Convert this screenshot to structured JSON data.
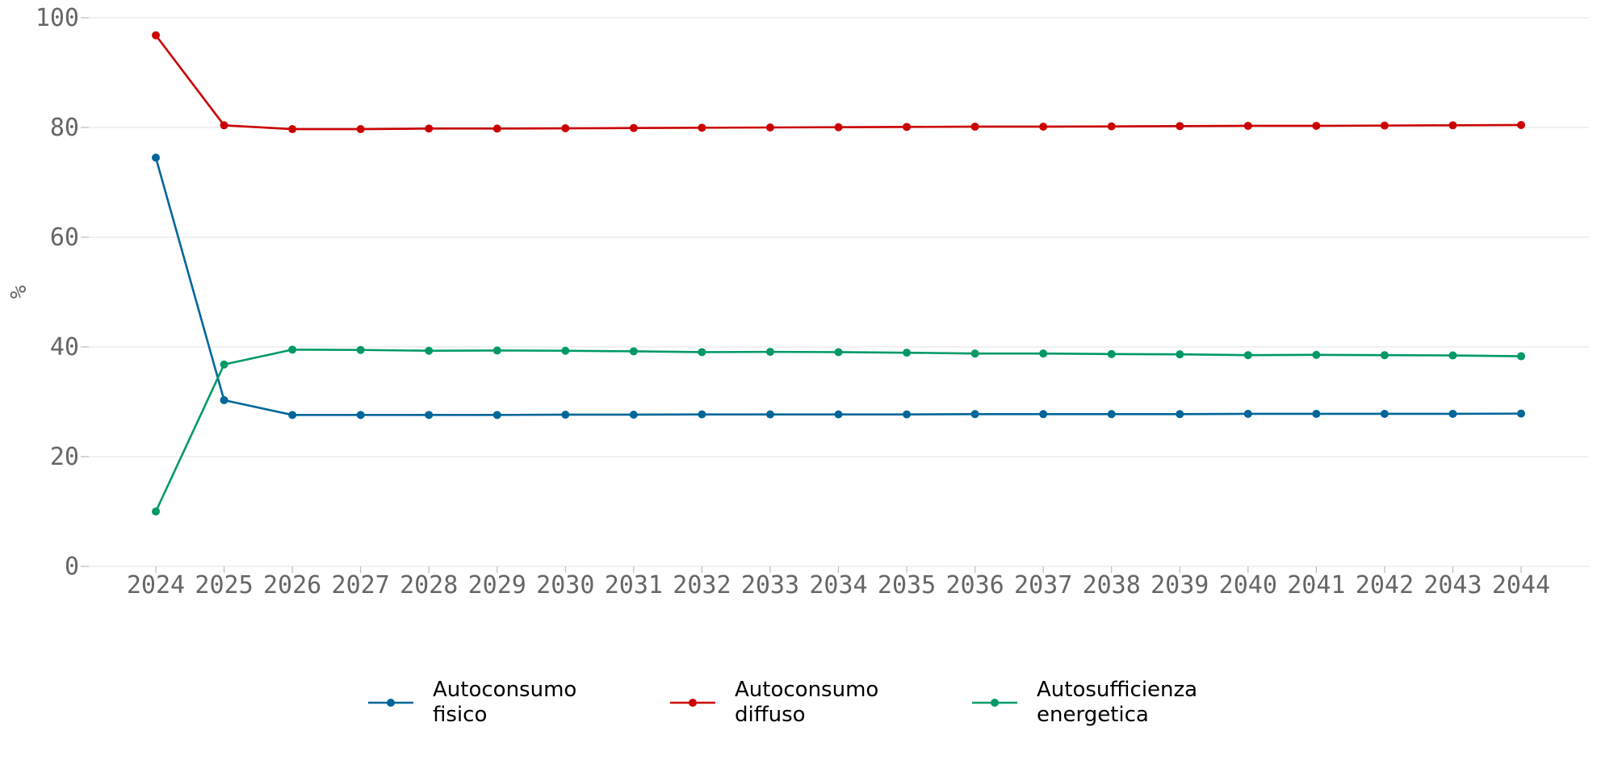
{
  "chart_data": {
    "type": "line",
    "title": "",
    "xlabel": "",
    "ylabel": "%",
    "ylim": [
      0,
      100
    ],
    "yticks": [
      0,
      20,
      40,
      60,
      80,
      100
    ],
    "grid": "horizontal",
    "legend_position": "bottom-center",
    "x": [
      "2024",
      "2025",
      "2026",
      "2027",
      "2028",
      "2029",
      "2030",
      "2031",
      "2032",
      "2033",
      "2034",
      "2035",
      "2036",
      "2037",
      "2038",
      "2039",
      "2040",
      "2041",
      "2042",
      "2043",
      "2044"
    ],
    "series": [
      {
        "name": "Autoconsumo\nfisico",
        "color": "#006699",
        "values": [
          74.5,
          30.3,
          27.6,
          27.6,
          27.6,
          27.6,
          27.65,
          27.65,
          27.7,
          27.7,
          27.7,
          27.7,
          27.75,
          27.75,
          27.75,
          27.75,
          27.8,
          27.8,
          27.8,
          27.8,
          27.85
        ]
      },
      {
        "name": "Autoconsumo\ndiffuso",
        "color": "#cc0000",
        "values": [
          96.8,
          80.4,
          79.7,
          79.7,
          79.8,
          79.8,
          79.85,
          79.9,
          79.95,
          80.0,
          80.05,
          80.1,
          80.15,
          80.15,
          80.2,
          80.25,
          80.3,
          80.3,
          80.35,
          80.4,
          80.45
        ]
      },
      {
        "name": "Autosufficienza\nenergetica",
        "color": "#009966",
        "values": [
          10.0,
          36.8,
          39.5,
          39.45,
          39.3,
          39.35,
          39.3,
          39.2,
          39.05,
          39.1,
          39.05,
          38.95,
          38.8,
          38.8,
          38.7,
          38.65,
          38.5,
          38.55,
          38.5,
          38.45,
          38.3
        ]
      }
    ]
  }
}
